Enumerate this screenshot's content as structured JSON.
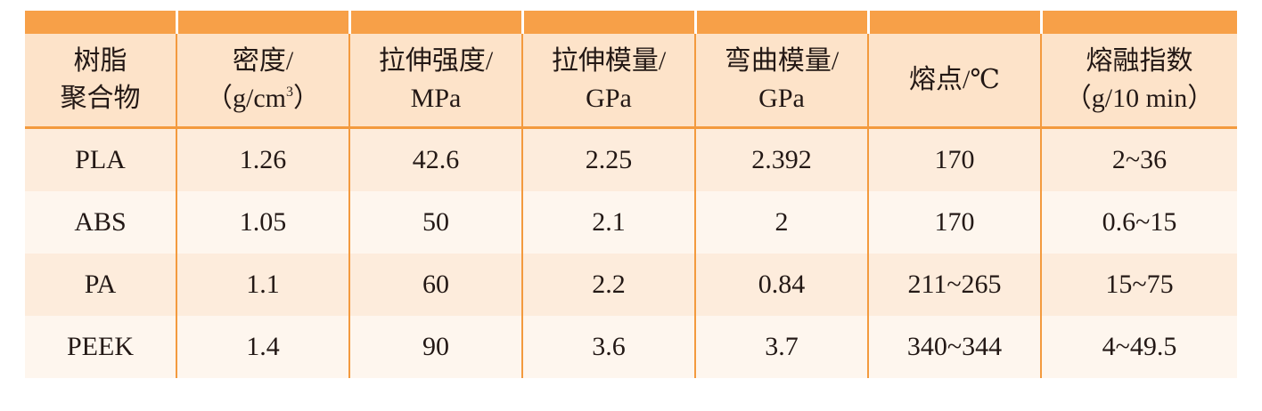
{
  "table": {
    "headers": [
      {
        "line1": "树脂",
        "line2": "聚合物"
      },
      {
        "line1": "密度/",
        "line2": "（g/cm",
        "sup": "3",
        "line2_tail": "）"
      },
      {
        "line1": "拉伸强度/",
        "line2": "MPa"
      },
      {
        "line1": "拉伸模量/",
        "line2": "GPa"
      },
      {
        "line1": "弯曲模量/",
        "line2": "GPa"
      },
      {
        "line1": "熔点/℃",
        "line2": ""
      },
      {
        "line1": "熔融指数",
        "line2": "（g/10 min）"
      }
    ],
    "rows": [
      [
        "PLA",
        "1.26",
        "42.6",
        "2.25",
        "2.392",
        "170",
        "2~36"
      ],
      [
        "ABS",
        "1.05",
        "50",
        "2.1",
        "2",
        "170",
        "0.6~15"
      ],
      [
        "PA",
        "1.1",
        "60",
        "2.2",
        "0.84",
        "211~265",
        "15~75"
      ],
      [
        "PEEK",
        "1.4",
        "90",
        "3.6",
        "3.7",
        "340~344",
        "4~49.5"
      ]
    ]
  },
  "colors": {
    "header_strip": "#f7a048",
    "header_bg": "#fde3c9",
    "row_odd": "#fdecdc",
    "row_even": "#fef6ee",
    "divider": "#f39a3e"
  }
}
